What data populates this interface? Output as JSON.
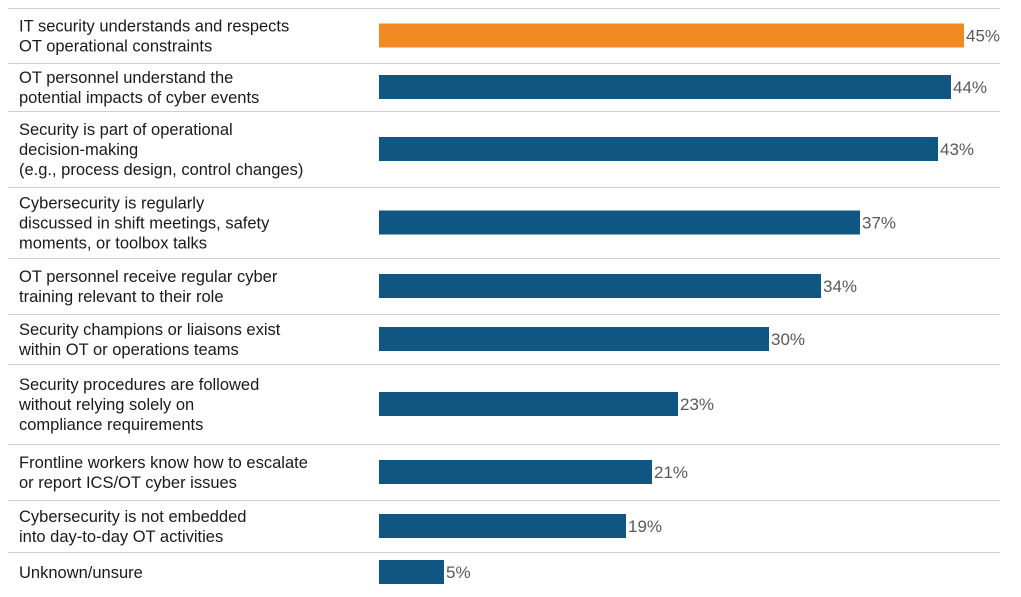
{
  "chart_data": {
    "type": "bar",
    "orientation": "horizontal",
    "categories": [
      "IT security understands and respects\nOT operational constraints",
      "OT personnel understand the\npotential impacts of cyber events",
      "Security is part of operational\ndecision-making\n(e.g., process design, control changes)",
      "Cybersecurity is regularly\ndiscussed in shift meetings, safety\nmoments, or toolbox talks",
      "OT personnel receive regular cyber\ntraining relevant to their role",
      "Security champions or liaisons exist\nwithin OT or operations teams",
      "Security procedures are followed\nwithout relying solely on\ncompliance requirements",
      "Frontline workers know how to escalate\nor report ICS/OT cyber issues",
      "Cybersecurity is not embedded\ninto day-to-day OT activities",
      "Unknown/unsure"
    ],
    "values": [
      45,
      44,
      43,
      37,
      34,
      30,
      23,
      21,
      19,
      5
    ],
    "value_labels": [
      "45%",
      "44%",
      "43%",
      "37%",
      "34%",
      "30%",
      "23%",
      "21%",
      "19%",
      "5%"
    ],
    "unit": "%",
    "highlight_index": 0,
    "colors": {
      "bar": "#0f5782",
      "highlight": "#f18a22",
      "divider": "#cfcfcf"
    },
    "xlim": [
      0,
      45
    ],
    "grid": false,
    "legend": "none"
  }
}
